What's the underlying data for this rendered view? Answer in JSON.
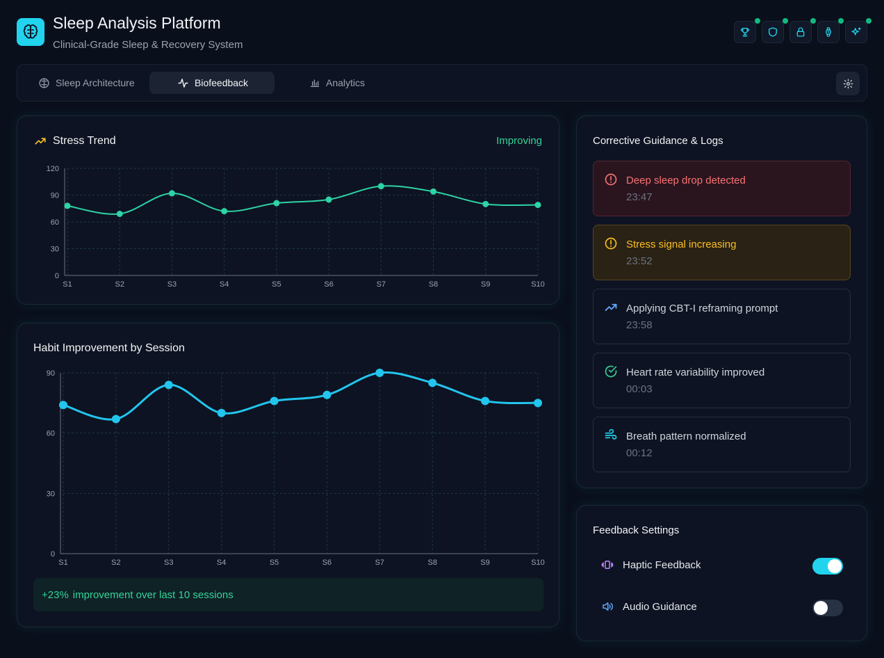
{
  "header": {
    "title": "Sleep Analysis Platform",
    "subtitle": "Clinical-Grade Sleep & Recovery System",
    "logo_icon": "brain-icon",
    "icons": [
      "trophy-icon",
      "shield-icon",
      "lock-icon",
      "watch-icon",
      "sparkles-icon"
    ],
    "status_color": "#10b981"
  },
  "tabs": [
    {
      "label": "Sleep Architecture",
      "icon": "brain-icon",
      "active": false
    },
    {
      "label": "Biofeedback",
      "icon": "activity-icon",
      "active": true
    },
    {
      "label": "Analytics",
      "icon": "bar-chart-icon",
      "active": false
    }
  ],
  "stress": {
    "title": "Stress Trend",
    "status": "Improving"
  },
  "habit": {
    "title": "Habit Improvement by Session",
    "summary_value": "+23%",
    "summary_text": "improvement over last 10 sessions"
  },
  "chart_data": [
    {
      "type": "line",
      "title": "Stress Trend",
      "categories": [
        "S1",
        "S2",
        "S3",
        "S4",
        "S5",
        "S6",
        "S7",
        "S8",
        "S9",
        "S10"
      ],
      "values": [
        78,
        69,
        92,
        72,
        81,
        85,
        100,
        94,
        80,
        79
      ],
      "ylim": [
        0,
        120
      ],
      "yticks": [
        0,
        30,
        60,
        90,
        120
      ],
      "color": "#2dd4a6",
      "grid": true
    },
    {
      "type": "line",
      "title": "Habit Improvement by Session",
      "categories": [
        "S1",
        "S2",
        "S3",
        "S4",
        "S5",
        "S6",
        "S7",
        "S8",
        "S9",
        "S10"
      ],
      "values": [
        74,
        67,
        84,
        70,
        76,
        79,
        90,
        85,
        76,
        75
      ],
      "ylim": [
        0,
        90
      ],
      "yticks": [
        0,
        30,
        60,
        90
      ],
      "color": "#22c5ee",
      "grid": true
    }
  ],
  "guidance": {
    "title": "Corrective Guidance & Logs",
    "logs": [
      {
        "message": "Deep sleep drop detected",
        "time": "23:47",
        "level": "danger",
        "icon": "alert-circle-icon"
      },
      {
        "message": "Stress signal increasing",
        "time": "23:52",
        "level": "warn",
        "icon": "alert-circle-icon"
      },
      {
        "message": "Applying CBT-I reframing prompt",
        "time": "23:58",
        "level": "info",
        "icon": "trending-up-icon"
      },
      {
        "message": "Heart rate variability improved",
        "time": "00:03",
        "level": "success",
        "icon": "check-circle-icon"
      },
      {
        "message": "Breath pattern normalized",
        "time": "00:12",
        "level": "info",
        "icon": "wind-icon"
      }
    ]
  },
  "settings": {
    "title": "Feedback Settings",
    "items": [
      {
        "label": "Haptic Feedback",
        "icon": "vibrate-icon",
        "enabled": true
      },
      {
        "label": "Audio Guidance",
        "icon": "volume-icon",
        "enabled": false
      }
    ]
  },
  "colors": {
    "accent": "#22d3ee",
    "success": "#34d399",
    "danger": "#f87171",
    "warning": "#fbbf24",
    "background": "#0a0f1c"
  }
}
